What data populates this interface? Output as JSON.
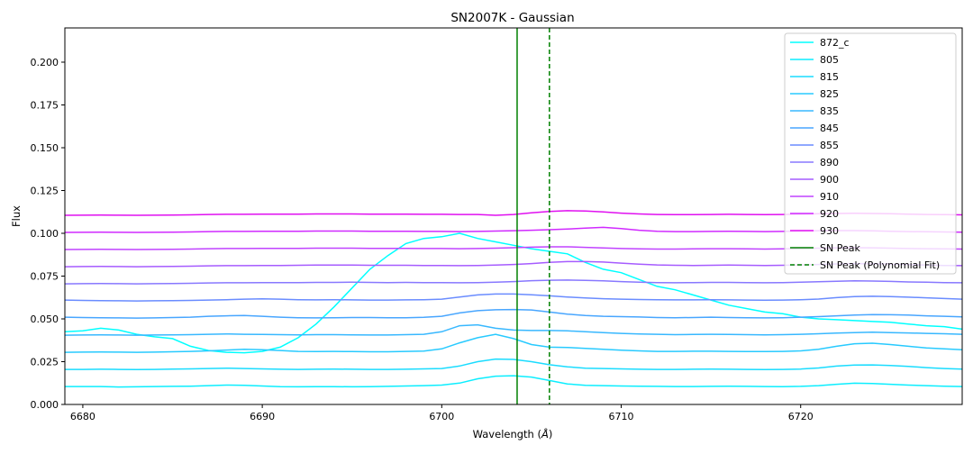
{
  "chart_data": {
    "type": "line",
    "title": "SN2007K - Gaussian",
    "xlabel": "Wavelength ($\\AA$)",
    "xlabel_text": "Wavelength (",
    "xlabel_unit": "Å",
    "xlabel_close": ")",
    "ylabel": "Flux",
    "xlim": [
      6679,
      6729
    ],
    "ylim": [
      0.0,
      0.22
    ],
    "xticks": [
      "6680",
      "6690",
      "6700",
      "6710",
      "6720"
    ],
    "xtick_values": [
      6680,
      6690,
      6700,
      6710,
      6720
    ],
    "yticks": [
      "0.000",
      "0.025",
      "0.050",
      "0.075",
      "0.100",
      "0.125",
      "0.150",
      "0.175",
      "0.200"
    ],
    "ytick_values": [
      0.0,
      0.025,
      0.05,
      0.075,
      0.1,
      0.125,
      0.15,
      0.175,
      0.2
    ],
    "legend_position": "top-right",
    "x": [
      6679,
      6680,
      6681,
      6682,
      6683,
      6684,
      6685,
      6686,
      6687,
      6688,
      6689,
      6690,
      6691,
      6692,
      6693,
      6694,
      6695,
      6696,
      6697,
      6698,
      6699,
      6700,
      6701,
      6702,
      6703,
      6704,
      6705,
      6706,
      6707,
      6708,
      6709,
      6710,
      6711,
      6712,
      6713,
      6714,
      6715,
      6716,
      6717,
      6718,
      6719,
      6720,
      6721,
      6722,
      6723,
      6724,
      6725,
      6726,
      6727,
      6728,
      6729
    ],
    "series": [
      {
        "name": "872_c",
        "color": "#00ffff",
        "values": [
          0.0425,
          0.043,
          0.0445,
          0.0435,
          0.041,
          0.0395,
          0.0385,
          0.034,
          0.0315,
          0.0305,
          0.0302,
          0.031,
          0.0335,
          0.039,
          0.047,
          0.057,
          0.068,
          0.079,
          0.087,
          0.094,
          0.097,
          0.098,
          0.1,
          0.097,
          0.095,
          0.093,
          0.091,
          0.0895,
          0.088,
          0.083,
          0.079,
          0.077,
          0.073,
          0.069,
          0.067,
          0.064,
          0.061,
          0.058,
          0.056,
          0.054,
          0.053,
          0.051,
          0.05,
          0.0495,
          0.049,
          0.0485,
          0.048,
          0.047,
          0.046,
          0.0455,
          0.044
        ]
      },
      {
        "name": "805",
        "color": "#0ceeff",
        "values": [
          0.0105,
          0.0105,
          0.0105,
          0.0102,
          0.0103,
          0.0105,
          0.0106,
          0.0107,
          0.011,
          0.0113,
          0.0112,
          0.0108,
          0.0104,
          0.0103,
          0.0104,
          0.0104,
          0.0103,
          0.0104,
          0.0106,
          0.0108,
          0.011,
          0.0113,
          0.0125,
          0.015,
          0.0165,
          0.0168,
          0.016,
          0.014,
          0.012,
          0.0112,
          0.011,
          0.0108,
          0.0107,
          0.0106,
          0.0105,
          0.0105,
          0.0106,
          0.0107,
          0.0106,
          0.0105,
          0.0104,
          0.0106,
          0.011,
          0.0118,
          0.0124,
          0.0122,
          0.0118,
          0.0113,
          0.011,
          0.0107,
          0.0105
        ]
      },
      {
        "name": "815",
        "color": "#1adcff",
        "values": [
          0.0205,
          0.0205,
          0.0206,
          0.0205,
          0.0204,
          0.0205,
          0.0207,
          0.0208,
          0.021,
          0.0212,
          0.021,
          0.0208,
          0.0206,
          0.0205,
          0.0206,
          0.0207,
          0.0206,
          0.0205,
          0.0205,
          0.0206,
          0.0208,
          0.021,
          0.0225,
          0.025,
          0.0265,
          0.0263,
          0.025,
          0.0232,
          0.022,
          0.0212,
          0.021,
          0.0208,
          0.0206,
          0.0205,
          0.0205,
          0.0206,
          0.0207,
          0.0206,
          0.0205,
          0.0204,
          0.0205,
          0.0207,
          0.0213,
          0.0224,
          0.023,
          0.0231,
          0.0228,
          0.0222,
          0.0215,
          0.021,
          0.0207
        ]
      },
      {
        "name": "825",
        "color": "#28caff",
        "values": [
          0.0305,
          0.0306,
          0.0307,
          0.0306,
          0.0305,
          0.0306,
          0.0308,
          0.031,
          0.0313,
          0.0318,
          0.0322,
          0.032,
          0.0315,
          0.031,
          0.0309,
          0.031,
          0.0309,
          0.0308,
          0.0308,
          0.031,
          0.0312,
          0.0325,
          0.036,
          0.039,
          0.041,
          0.0385,
          0.035,
          0.0335,
          0.0333,
          0.0328,
          0.0322,
          0.0317,
          0.0313,
          0.031,
          0.031,
          0.0311,
          0.0311,
          0.031,
          0.0309,
          0.0309,
          0.031,
          0.0313,
          0.0322,
          0.034,
          0.0355,
          0.0358,
          0.035,
          0.034,
          0.033,
          0.0325,
          0.032
        ]
      },
      {
        "name": "835",
        "color": "#38b8ff",
        "values": [
          0.0405,
          0.0406,
          0.0407,
          0.0406,
          0.0405,
          0.0406,
          0.0407,
          0.0408,
          0.041,
          0.0412,
          0.041,
          0.0409,
          0.0408,
          0.0407,
          0.0408,
          0.0408,
          0.0407,
          0.0406,
          0.0406,
          0.0408,
          0.041,
          0.0425,
          0.046,
          0.0465,
          0.0445,
          0.0435,
          0.0432,
          0.0432,
          0.043,
          0.0425,
          0.042,
          0.0415,
          0.0412,
          0.041,
          0.0408,
          0.0409,
          0.041,
          0.0409,
          0.0408,
          0.0407,
          0.0408,
          0.041,
          0.0413,
          0.0417,
          0.042,
          0.0422,
          0.042,
          0.0418,
          0.0415,
          0.0413,
          0.041
        ]
      },
      {
        "name": "845",
        "color": "#48a6ff",
        "values": [
          0.051,
          0.0508,
          0.0507,
          0.0506,
          0.0505,
          0.0506,
          0.0508,
          0.051,
          0.0515,
          0.0518,
          0.052,
          0.0515,
          0.051,
          0.0507,
          0.0506,
          0.0507,
          0.0508,
          0.0508,
          0.0507,
          0.0507,
          0.0509,
          0.0515,
          0.0535,
          0.0548,
          0.0553,
          0.0555,
          0.0552,
          0.054,
          0.0528,
          0.052,
          0.0515,
          0.0513,
          0.0511,
          0.0508,
          0.0507,
          0.0508,
          0.051,
          0.0508,
          0.0507,
          0.0506,
          0.0507,
          0.051,
          0.0513,
          0.0518,
          0.0522,
          0.0525,
          0.0524,
          0.0522,
          0.0518,
          0.0515,
          0.0512
        ]
      },
      {
        "name": "855",
        "color": "#6a8cff",
        "values": [
          0.061,
          0.0608,
          0.0607,
          0.0606,
          0.0605,
          0.0606,
          0.0607,
          0.0608,
          0.061,
          0.0612,
          0.0615,
          0.0617,
          0.0615,
          0.0612,
          0.0611,
          0.0612,
          0.0611,
          0.061,
          0.061,
          0.0611,
          0.0612,
          0.0615,
          0.0628,
          0.064,
          0.0645,
          0.0645,
          0.0641,
          0.0635,
          0.0628,
          0.0622,
          0.0618,
          0.0615,
          0.0613,
          0.0612,
          0.0611,
          0.0611,
          0.0612,
          0.0611,
          0.061,
          0.0609,
          0.061,
          0.0612,
          0.0616,
          0.0624,
          0.063,
          0.0632,
          0.063,
          0.0627,
          0.0623,
          0.0619,
          0.0615
        ]
      },
      {
        "name": "890",
        "color": "#8878ff",
        "values": [
          0.0705,
          0.0706,
          0.0707,
          0.0706,
          0.0705,
          0.0706,
          0.0707,
          0.0708,
          0.071,
          0.0711,
          0.0711,
          0.0712,
          0.0712,
          0.0712,
          0.0713,
          0.0713,
          0.0714,
          0.0713,
          0.0712,
          0.0713,
          0.0712,
          0.0712,
          0.0711,
          0.0712,
          0.0714,
          0.0718,
          0.0723,
          0.0726,
          0.0727,
          0.0725,
          0.0722,
          0.0718,
          0.0714,
          0.0712,
          0.0711,
          0.0712,
          0.0713,
          0.0713,
          0.0712,
          0.0711,
          0.0712,
          0.0714,
          0.0717,
          0.072,
          0.0722,
          0.0721,
          0.0719,
          0.0716,
          0.0714,
          0.0712,
          0.0711
        ]
      },
      {
        "name": "900",
        "color": "#a65cff",
        "values": [
          0.0805,
          0.0806,
          0.0807,
          0.0806,
          0.0805,
          0.0806,
          0.0807,
          0.0808,
          0.081,
          0.0811,
          0.0811,
          0.0812,
          0.0812,
          0.0813,
          0.0814,
          0.0814,
          0.0814,
          0.0813,
          0.0813,
          0.0813,
          0.0812,
          0.0812,
          0.0811,
          0.0812,
          0.0814,
          0.0818,
          0.0823,
          0.083,
          0.0835,
          0.0835,
          0.0832,
          0.0826,
          0.082,
          0.0815,
          0.0813,
          0.0812,
          0.0813,
          0.0814,
          0.0813,
          0.0812,
          0.0813,
          0.0815,
          0.0818,
          0.0821,
          0.0823,
          0.0822,
          0.082,
          0.0817,
          0.0814,
          0.0812,
          0.0811
        ]
      },
      {
        "name": "910",
        "color": "#c043ff",
        "values": [
          0.0905,
          0.0906,
          0.0907,
          0.0906,
          0.0905,
          0.0906,
          0.0907,
          0.0908,
          0.091,
          0.0911,
          0.0911,
          0.0912,
          0.0912,
          0.0912,
          0.0913,
          0.0913,
          0.0913,
          0.0912,
          0.0912,
          0.0912,
          0.0911,
          0.0911,
          0.091,
          0.0911,
          0.0913,
          0.0916,
          0.0919,
          0.0921,
          0.0921,
          0.0918,
          0.0914,
          0.0911,
          0.0909,
          0.0908,
          0.0908,
          0.0909,
          0.091,
          0.091,
          0.0909,
          0.0908,
          0.0909,
          0.0911,
          0.0913,
          0.0915,
          0.0916,
          0.0915,
          0.0913,
          0.0911,
          0.091,
          0.0909,
          0.0908
        ]
      },
      {
        "name": "920",
        "color": "#d02aff",
        "values": [
          0.1005,
          0.1006,
          0.1007,
          0.1006,
          0.1005,
          0.1006,
          0.1007,
          0.1008,
          0.101,
          0.1011,
          0.1011,
          0.1012,
          0.1012,
          0.1012,
          0.1013,
          0.1013,
          0.1013,
          0.1012,
          0.1012,
          0.1012,
          0.1011,
          0.1011,
          0.101,
          0.1011,
          0.1013,
          0.1015,
          0.1018,
          0.1021,
          0.1025,
          0.103,
          0.1035,
          0.1028,
          0.1018,
          0.1012,
          0.101,
          0.101,
          0.1011,
          0.1012,
          0.1011,
          0.101,
          0.1011,
          0.1013,
          0.1015,
          0.1016,
          0.1016,
          0.1014,
          0.1012,
          0.101,
          0.1009,
          0.1008,
          0.1007
        ]
      },
      {
        "name": "930",
        "color": "#e010f0",
        "values": [
          0.1105,
          0.1106,
          0.1107,
          0.1106,
          0.1105,
          0.1106,
          0.1107,
          0.1108,
          0.111,
          0.1111,
          0.1111,
          0.1112,
          0.1112,
          0.1112,
          0.1113,
          0.1113,
          0.1113,
          0.1112,
          0.1112,
          0.1112,
          0.1111,
          0.1111,
          0.111,
          0.111,
          0.1105,
          0.111,
          0.112,
          0.1128,
          0.1132,
          0.113,
          0.1125,
          0.1118,
          0.1113,
          0.111,
          0.1109,
          0.1109,
          0.111,
          0.1111,
          0.111,
          0.1109,
          0.111,
          0.1112,
          0.1114,
          0.1116,
          0.1117,
          0.1116,
          0.1114,
          0.1112,
          0.111,
          0.1109,
          0.1108
        ]
      }
    ],
    "vlines": [
      {
        "name": "SN Peak",
        "x": 6704.2,
        "color": "#008000",
        "style": "solid"
      },
      {
        "name": "SN Peak (Polynomial Fit)",
        "x": 6706.0,
        "color": "#008000",
        "style": "dashed"
      }
    ]
  }
}
